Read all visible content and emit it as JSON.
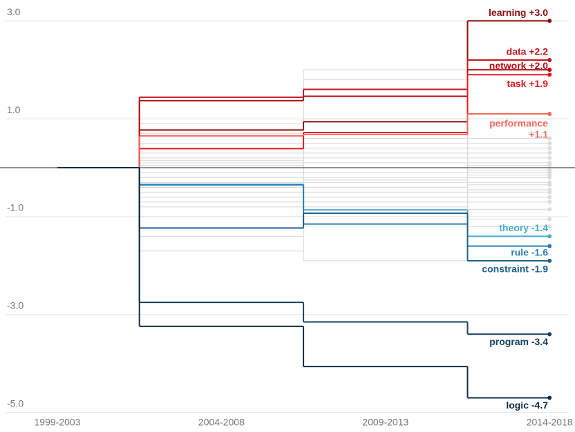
{
  "chart_data": {
    "type": "step",
    "categories": [
      "1999-2003",
      "2004-2008",
      "2009-2013",
      "2014-2018"
    ],
    "ylim": [
      -5.2,
      3.2
    ],
    "yticks": [
      {
        "value": 3,
        "label": "3.0"
      },
      {
        "value": 1,
        "label": "1.0"
      },
      {
        "value": -1,
        "label": "-1.0"
      },
      {
        "value": -3,
        "label": "-3.0"
      },
      {
        "value": -5,
        "label": "-5.0"
      }
    ],
    "grid": true,
    "background_color": "#dcdcdc",
    "background_series": [
      {
        "values": [
          0,
          0.2,
          2.0,
          0.6
        ]
      },
      {
        "values": [
          0,
          0.1,
          1.8,
          0.5
        ]
      },
      {
        "values": [
          0,
          0.05,
          1.0,
          0.4
        ]
      },
      {
        "values": [
          0,
          0.9,
          0.5,
          0.3
        ]
      },
      {
        "values": [
          0,
          -0.1,
          0.3,
          0.2
        ]
      },
      {
        "values": [
          0,
          0.3,
          0.1,
          0.1
        ]
      },
      {
        "values": [
          0,
          -0.2,
          0.2,
          0.05
        ]
      },
      {
        "values": [
          0,
          0.15,
          -0.1,
          -0.05
        ]
      },
      {
        "values": [
          0,
          -0.3,
          0.4,
          -0.1
        ]
      },
      {
        "values": [
          0,
          -0.5,
          -0.2,
          -0.15
        ]
      },
      {
        "values": [
          0,
          0.5,
          -0.3,
          -0.2
        ]
      },
      {
        "values": [
          0,
          -0.7,
          -0.4,
          -0.3
        ]
      },
      {
        "values": [
          0,
          -0.6,
          0.0,
          -0.35
        ]
      },
      {
        "values": [
          0,
          -0.8,
          -0.6,
          -0.45
        ]
      },
      {
        "values": [
          0,
          -1.4,
          -0.5,
          -0.5
        ]
      },
      {
        "values": [
          0,
          0.7,
          -0.7,
          -0.6
        ]
      },
      {
        "values": [
          0,
          -1.7,
          -0.8,
          -0.7
        ]
      },
      {
        "values": [
          0,
          -1.0,
          -1.9,
          -0.85
        ]
      },
      {
        "values": [
          0,
          0.4,
          -0.25,
          -1.05
        ]
      },
      {
        "values": [
          0,
          -0.4,
          0.6,
          -1.2
        ]
      }
    ],
    "series": [
      {
        "name": "learning",
        "label_lines": [
          "learning +3.0"
        ],
        "color": "#8e0c0c",
        "values": [
          0,
          0.77,
          0.94,
          3.0
        ]
      },
      {
        "name": "data",
        "label_lines": [
          "data +2.2"
        ],
        "color": "#c4111b",
        "values": [
          0,
          1.44,
          1.6,
          2.2
        ]
      },
      {
        "name": "network",
        "label_lines": [
          "network +2.0"
        ],
        "color": "#b50c12",
        "values": [
          0,
          1.37,
          1.46,
          2.0
        ]
      },
      {
        "name": "task",
        "label_lines": [
          "task +1.9"
        ],
        "color": "#e3181f",
        "values": [
          0,
          0.39,
          0.72,
          1.9
        ]
      },
      {
        "name": "performance",
        "label_lines": [
          "performance",
          "+1.1"
        ],
        "color": "#f5675c",
        "values": [
          0,
          0.65,
          0.68,
          1.1
        ]
      },
      {
        "name": "theory",
        "label_lines": [
          "theory -1.4"
        ],
        "color": "#47aad3",
        "values": [
          0,
          -0.34,
          -0.86,
          -1.4
        ]
      },
      {
        "name": "rule",
        "label_lines": [
          "rule -1.6"
        ],
        "color": "#2b7fb2",
        "values": [
          0,
          -0.35,
          -1.15,
          -1.6
        ]
      },
      {
        "name": "constraint",
        "label_lines": [
          "constraint -1.9"
        ],
        "color": "#1d5f8c",
        "values": [
          0,
          -1.23,
          -0.93,
          -1.9
        ]
      },
      {
        "name": "program",
        "label_lines": [
          "program -3.4"
        ],
        "color": "#173f62",
        "values": [
          0,
          -2.75,
          -3.15,
          -3.4
        ]
      },
      {
        "name": "logic",
        "label_lines": [
          "logic -4.7"
        ],
        "color": "#0f2b47",
        "values": [
          0,
          -3.24,
          -4.06,
          -4.7
        ]
      }
    ]
  }
}
